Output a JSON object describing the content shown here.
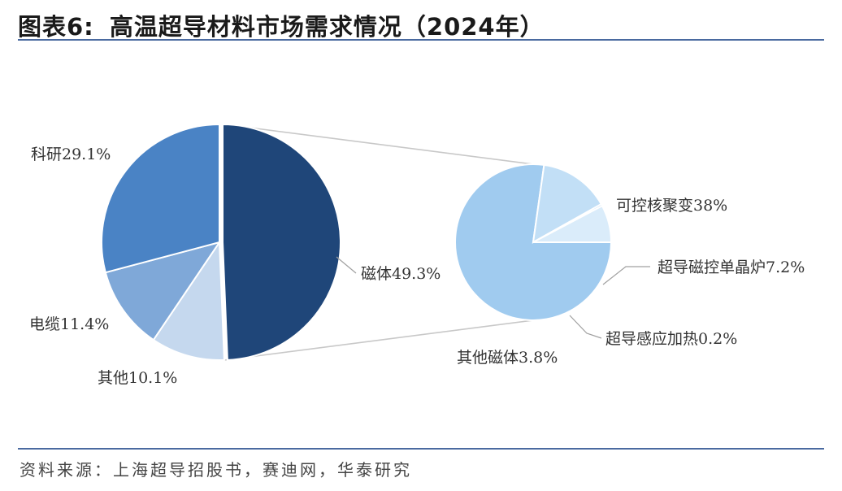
{
  "title": {
    "prefix": "图表6:",
    "text": "高温超导材料市场需求情况（2024年）"
  },
  "source": "资料来源：上海超导招股书，赛迪网，华泰研究",
  "colors": {
    "rule": "#4a6aa0",
    "connector": "#c8c8c8"
  },
  "chart_data": [
    {
      "type": "pie",
      "slices": [
        {
          "label": "磁体49.3%",
          "value": 49.3,
          "color": "#1f4679"
        },
        {
          "label": "其他10.1%",
          "value": 10.1,
          "color": "#c5d8ee"
        },
        {
          "label": "电缆11.4%",
          "value": 11.4,
          "color": "#7fa8d8"
        },
        {
          "label": "科研29.1%",
          "value": 29.1,
          "color": "#4a83c5"
        }
      ]
    },
    {
      "type": "pie",
      "breakdown_of": "磁体49.3%",
      "slices": [
        {
          "label": "可控核聚变38%",
          "value": 38.0,
          "color": "#a0cbef"
        },
        {
          "label": "超导磁控单晶炉7.2%",
          "value": 7.2,
          "color": "#c2dff6"
        },
        {
          "label": "超导感应加热0.2%",
          "value": 0.2,
          "color": "#a0cbef"
        },
        {
          "label": "其他磁体3.8%",
          "value": 3.8,
          "color": "#daecfa"
        }
      ]
    }
  ]
}
